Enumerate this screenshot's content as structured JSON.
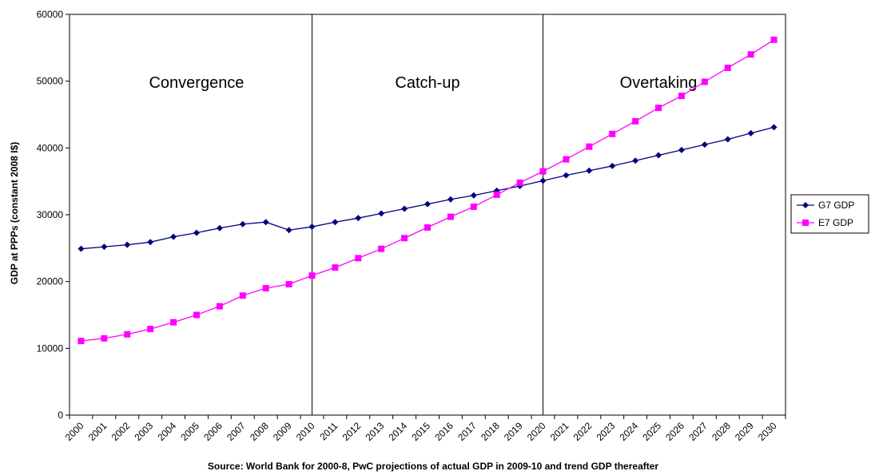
{
  "chart_data": {
    "type": "line",
    "title": "",
    "ylabel": "GDP at PPPs (constant 2008 I$)",
    "xlabel": "Source: World Bank for 2000-8, PwC projections of actual GDP in 2009-10 and trend GDP thereafter",
    "ylim": [
      0,
      60000
    ],
    "yticks": [
      0,
      10000,
      20000,
      30000,
      40000,
      50000,
      60000
    ],
    "grid": false,
    "legend_position": "right",
    "categories": [
      "2000",
      "2001",
      "2002",
      "2003",
      "2004",
      "2005",
      "2006",
      "2007",
      "2008",
      "2009",
      "2010",
      "2011",
      "2012",
      "2013",
      "2014",
      "2015",
      "2016",
      "2017",
      "2018",
      "2019",
      "2020",
      "2021",
      "2022",
      "2023",
      "2024",
      "2025",
      "2026",
      "2027",
      "2028",
      "2029",
      "2030"
    ],
    "series": [
      {
        "name": "G7 GDP",
        "color": "#000080",
        "marker": "diamond",
        "values": [
          24900,
          25200,
          25500,
          25900,
          26700,
          27300,
          28000,
          28600,
          28900,
          27700,
          28200,
          28900,
          29500,
          30200,
          30900,
          31600,
          32300,
          32900,
          33600,
          34300,
          35100,
          35900,
          36600,
          37300,
          38100,
          38900,
          39700,
          40500,
          41300,
          42200,
          43100
        ]
      },
      {
        "name": "E7 GDP",
        "color": "#FF00FF",
        "marker": "square",
        "values": [
          11100,
          11500,
          12100,
          12900,
          13900,
          15000,
          16300,
          17900,
          19000,
          19600,
          20900,
          22100,
          23500,
          24900,
          26500,
          28100,
          29700,
          31200,
          33000,
          34800,
          36500,
          38300,
          40200,
          42100,
          44000,
          46000,
          47800,
          49900,
          52000,
          54000,
          56200
        ]
      }
    ],
    "phases": [
      {
        "label": "Convergence",
        "from": "2000",
        "to": "2010"
      },
      {
        "label": "Catch-up",
        "from": "2010",
        "to": "2020"
      },
      {
        "label": "Overtaking",
        "from": "2020",
        "to": "2030"
      }
    ]
  }
}
